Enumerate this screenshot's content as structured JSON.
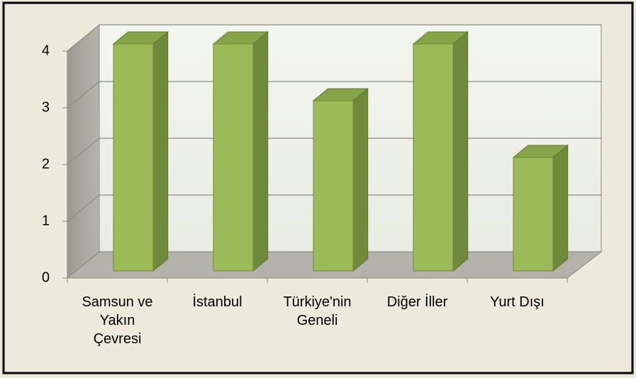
{
  "chart_data": {
    "type": "bar3d",
    "categories": [
      "Samsun ve Yakın Çevresi",
      "İstanbul",
      "Türkiye'nin Geneli",
      "Diğer İller",
      "Yurt Dışı"
    ],
    "values": [
      4,
      4,
      3,
      4,
      2
    ],
    "color": "#9bbb59",
    "ylim": [
      0,
      4
    ],
    "yticks": [
      0,
      1,
      2,
      3,
      4
    ],
    "grid": true
  }
}
